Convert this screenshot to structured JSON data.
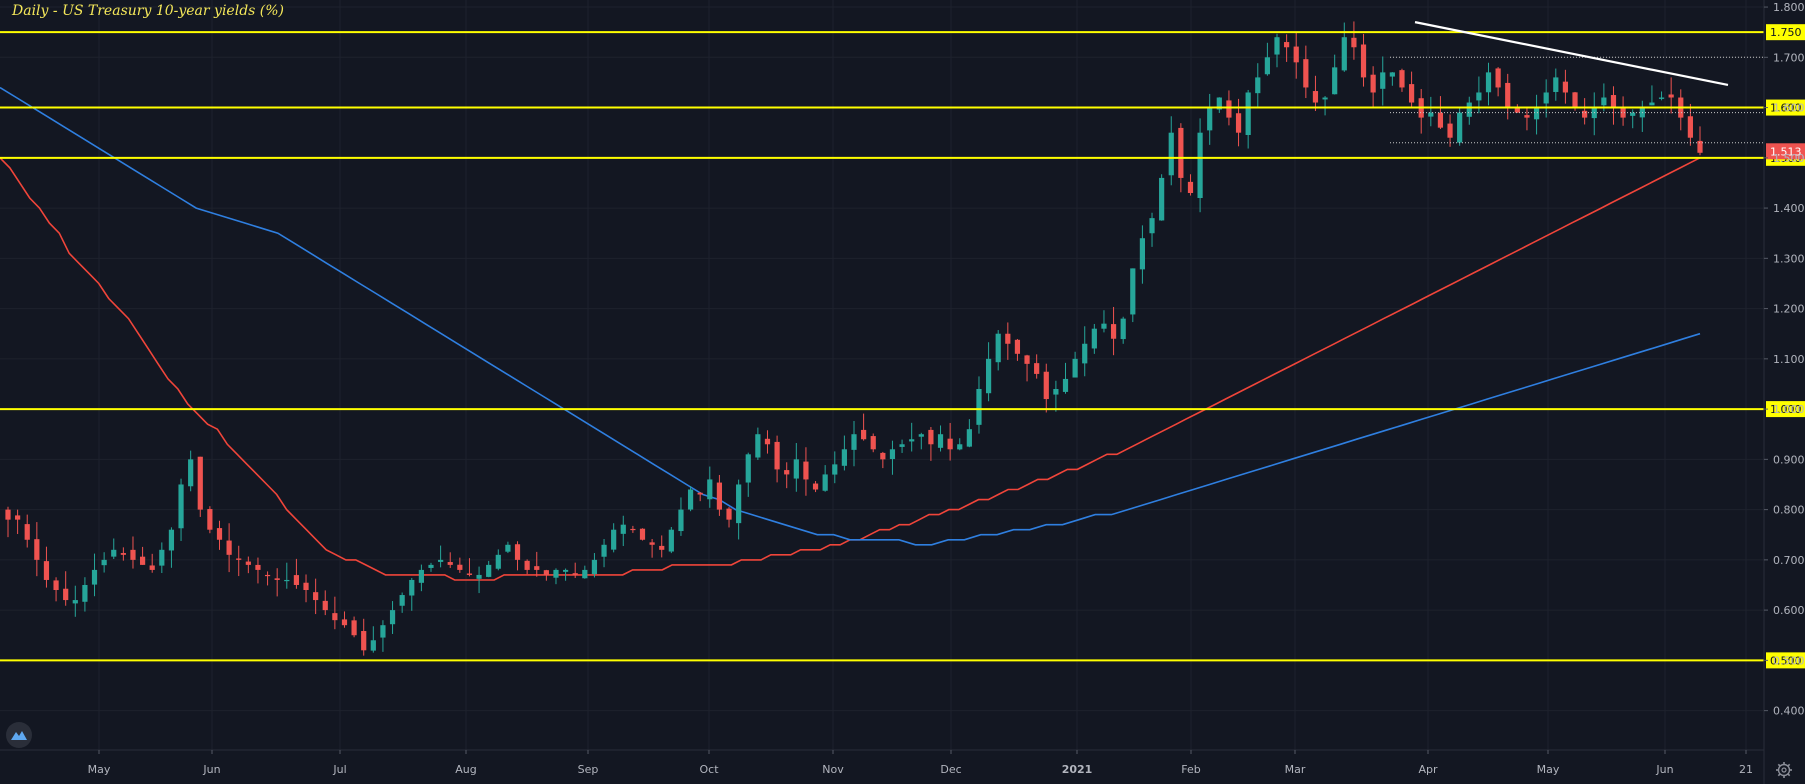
{
  "title": "Daily - US Treasury 10-year yields (%)",
  "chart_data": {
    "type": "candlestick",
    "title": "Daily - US Treasury 10-year yields (%)",
    "y_ticks": [
      "1.800",
      "1.700",
      "1.600",
      "1.500",
      "1.400",
      "1.300",
      "1.200",
      "1.100",
      "1.000",
      "0.900",
      "0.800",
      "0.700",
      "0.600",
      "0.500",
      "0.400"
    ],
    "x_ticks": [
      "May",
      "Jun",
      "Jul",
      "Aug",
      "Sep",
      "Oct",
      "Nov",
      "Dec",
      "2021",
      "Feb",
      "Mar",
      "Apr",
      "May",
      "Jun",
      "21"
    ],
    "ylim": [
      0.35,
      1.82
    ],
    "last_price": "1.513",
    "horizontal_levels": [
      {
        "value": 1.75,
        "label": "1.750",
        "color": "#ffff00"
      },
      {
        "value": 1.6,
        "label": "1.600",
        "color": "#ffff00"
      },
      {
        "value": 1.5,
        "label": "1.500",
        "color": "#ffff00"
      },
      {
        "value": 1.0,
        "label": "1.000",
        "color": "#ffff00"
      },
      {
        "value": 0.5,
        "label": "0.500",
        "color": "#ffff00"
      }
    ],
    "dotted_levels": [
      1.7,
      1.59,
      1.53
    ],
    "series": [
      {
        "values": [
          0.78,
          0.78,
          0.74,
          0.7,
          0.66,
          0.64,
          0.62,
          0.62,
          0.65,
          0.68,
          0.7,
          0.72,
          0.71,
          0.7,
          0.69,
          0.68,
          0.72,
          0.76,
          0.85,
          0.9,
          0.8,
          0.76,
          0.74,
          0.71,
          0.7,
          0.69,
          0.68,
          0.67,
          0.66,
          0.66,
          0.65,
          0.64,
          0.62,
          0.6,
          0.58,
          0.57,
          0.55,
          0.52,
          0.54,
          0.57,
          0.6,
          0.63,
          0.66,
          0.68,
          0.69,
          0.7,
          0.69,
          0.68,
          0.67,
          0.67,
          0.69,
          0.71,
          0.73,
          0.7,
          0.68,
          0.68,
          0.67,
          0.68,
          0.68,
          0.67,
          0.68,
          0.7,
          0.73,
          0.76,
          0.77,
          0.76,
          0.74,
          0.73,
          0.72,
          0.76,
          0.8,
          0.84,
          0.83,
          0.86,
          0.8,
          0.78,
          0.85,
          0.91,
          0.95,
          0.93,
          0.88,
          0.87,
          0.9,
          0.86,
          0.84,
          0.87,
          0.89,
          0.92,
          0.95,
          0.94,
          0.92,
          0.9,
          0.92,
          0.93,
          0.94,
          0.95,
          0.93,
          0.95,
          0.92,
          0.93,
          0.96,
          1.04,
          1.1,
          1.15,
          1.13,
          1.11,
          1.09,
          1.07,
          1.02,
          1.04,
          1.06,
          1.1,
          1.13,
          1.16,
          1.17,
          1.14,
          1.18,
          1.28,
          1.34,
          1.38,
          1.46,
          1.55,
          1.46,
          1.43,
          1.55,
          1.6,
          1.62,
          1.58,
          1.55,
          1.63,
          1.66,
          1.7,
          1.74,
          1.72,
          1.69,
          1.64,
          1.61,
          1.62,
          1.68,
          1.74,
          1.72,
          1.66,
          1.63,
          1.67,
          1.67,
          1.64,
          1.61,
          1.58,
          1.59,
          1.56,
          1.54,
          1.59,
          1.61,
          1.63,
          1.67,
          1.64,
          1.6,
          1.59,
          1.58,
          1.6,
          1.63,
          1.66,
          1.63,
          1.6,
          1.58,
          1.6,
          1.62,
          1.6,
          1.58,
          1.59,
          1.6,
          1.61,
          1.62,
          1.62,
          1.58,
          1.54,
          1.51
        ]
      },
      {
        "values": [
          1.5,
          1.48,
          1.45,
          1.42,
          1.4,
          1.37,
          1.35,
          1.31,
          1.29,
          1.27,
          1.25,
          1.22,
          1.2,
          1.18,
          1.15,
          1.12,
          1.09,
          1.06,
          1.04,
          1.01,
          0.99,
          0.97,
          0.96,
          0.93,
          0.91,
          0.89,
          0.87,
          0.85,
          0.83,
          0.8,
          0.78,
          0.76,
          0.74,
          0.72,
          0.71,
          0.7,
          0.7,
          0.69,
          0.68,
          0.67,
          0.67,
          0.67,
          0.67,
          0.67,
          0.67,
          0.67,
          0.66,
          0.66,
          0.66,
          0.66,
          0.66,
          0.67,
          0.67,
          0.67,
          0.67,
          0.67,
          0.67,
          0.67,
          0.67,
          0.67,
          0.67,
          0.67,
          0.67,
          0.67,
          0.68,
          0.68,
          0.68,
          0.68,
          0.69,
          0.69,
          0.69,
          0.69,
          0.69,
          0.69,
          0.69,
          0.7,
          0.7,
          0.7,
          0.71,
          0.71,
          0.71,
          0.72,
          0.72,
          0.72,
          0.73,
          0.73,
          0.74,
          0.74,
          0.75,
          0.76,
          0.76,
          0.77,
          0.77,
          0.78,
          0.79,
          0.79,
          0.8,
          0.8,
          0.81,
          0.82,
          0.82,
          0.83,
          0.84,
          0.84,
          0.85,
          0.86,
          0.86,
          0.87,
          0.88,
          0.88,
          0.89,
          0.9,
          0.91,
          0.91,
          0.92,
          0.93,
          0.94,
          0.95,
          0.96,
          0.97,
          0.98,
          0.99,
          1.0,
          1.01,
          1.02,
          1.03,
          1.04,
          1.05,
          1.06,
          1.07,
          1.08,
          1.09,
          1.1,
          1.11,
          1.12,
          1.13,
          1.14,
          1.15,
          1.16,
          1.17,
          1.18,
          1.19,
          1.2,
          1.21,
          1.22,
          1.23,
          1.24,
          1.25,
          1.26,
          1.27,
          1.28,
          1.29,
          1.3,
          1.31,
          1.32,
          1.33,
          1.34,
          1.35,
          1.36,
          1.37,
          1.38,
          1.39,
          1.4,
          1.41,
          1.42,
          1.43,
          1.44,
          1.45,
          1.46,
          1.47,
          1.48,
          1.49,
          1.5
        ]
      },
      {
        "values": [
          1.64,
          1.62,
          1.6,
          1.58,
          1.56,
          1.54,
          1.52,
          1.5,
          1.48,
          1.46,
          1.44,
          1.42,
          1.4,
          1.39,
          1.38,
          1.37,
          1.36,
          1.35,
          1.33,
          1.31,
          1.29,
          1.27,
          1.25,
          1.23,
          1.21,
          1.19,
          1.17,
          1.15,
          1.13,
          1.11,
          1.09,
          1.07,
          1.05,
          1.03,
          1.01,
          0.99,
          0.97,
          0.95,
          0.93,
          0.91,
          0.89,
          0.87,
          0.85,
          0.83,
          0.82,
          0.8,
          0.79,
          0.78,
          0.77,
          0.76,
          0.75,
          0.75,
          0.74,
          0.74,
          0.74,
          0.74,
          0.73,
          0.73,
          0.74,
          0.74,
          0.75,
          0.75,
          0.76,
          0.76,
          0.77,
          0.77,
          0.78,
          0.79,
          0.79,
          0.8,
          0.81,
          0.82,
          0.83,
          0.84,
          0.85,
          0.86,
          0.87,
          0.88,
          0.89,
          0.9,
          0.91,
          0.92,
          0.93,
          0.94,
          0.95,
          0.96,
          0.97,
          0.98,
          0.99,
          1.0,
          1.01,
          1.02,
          1.03,
          1.04,
          1.05,
          1.06,
          1.07,
          1.08,
          1.09,
          1.1,
          1.11,
          1.12,
          1.13,
          1.14,
          1.15
        ]
      }
    ],
    "trendline": {
      "from": 1.77,
      "to": 1.645
    }
  },
  "colors": {
    "background": "#131722",
    "up": "#26a69a",
    "down": "#ef5350",
    "ma_fast": "#f0453a",
    "ma_slow": "#2f7fe0",
    "level": "#ffff00",
    "trendline": "#ffffff",
    "price_badge": "#ef5350"
  },
  "icons": {
    "logo": "tradingview-logo-icon",
    "settings": "gear-icon"
  }
}
